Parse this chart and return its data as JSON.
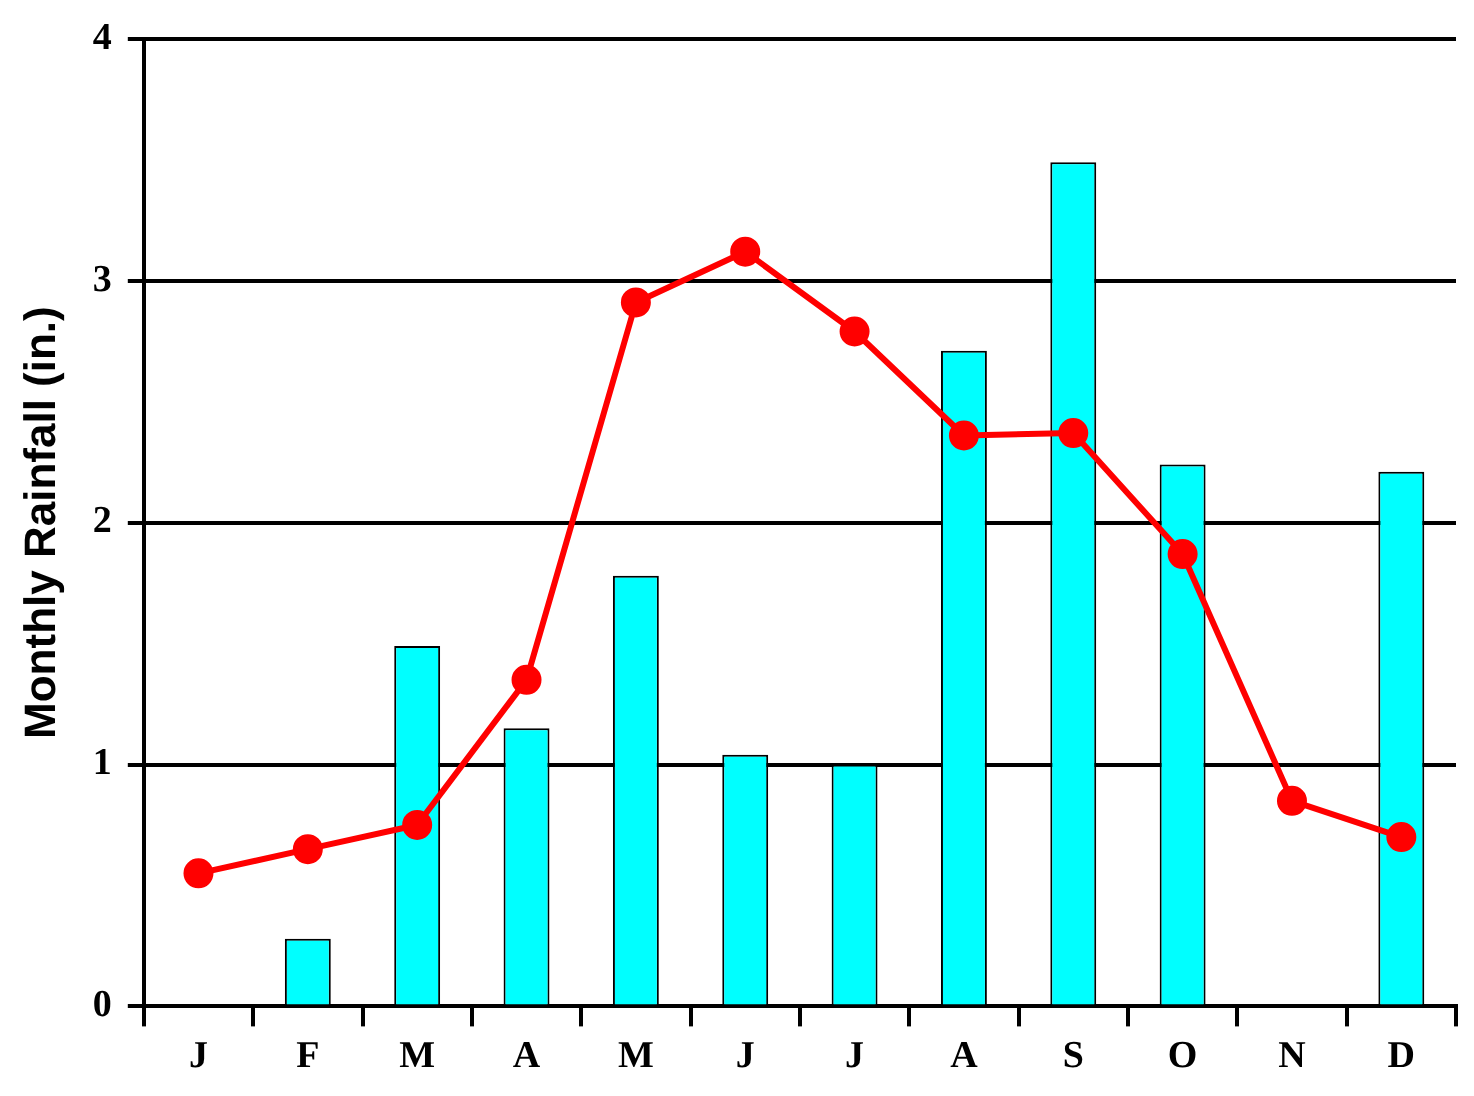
{
  "chart_data": {
    "type": "bar",
    "ylabel": "Monthly Rainfall (in.)",
    "categories": [
      "J",
      "F",
      "M",
      "A",
      "M",
      "J",
      "J",
      "A",
      "S",
      "O",
      "N",
      "D"
    ],
    "series": [
      {
        "color": "#00ffff",
        "values": [
          0,
          0.28,
          1.49,
          1.15,
          1.78,
          1.04,
          1.0,
          2.71,
          3.49,
          2.24,
          0,
          2.21
        ]
      },
      {
        "type": "line",
        "color": "#ff0000",
        "values": [
          0.55,
          0.65,
          0.75,
          1.35,
          2.91,
          3.12,
          2.79,
          2.36,
          2.37,
          1.87,
          0.85,
          0.7
        ],
        "marker": "circle",
        "line_style": "solid"
      }
    ],
    "ylim": [
      0,
      4
    ],
    "yticks": [
      0,
      1,
      2,
      3,
      4
    ],
    "grid": "y",
    "legend": false
  }
}
